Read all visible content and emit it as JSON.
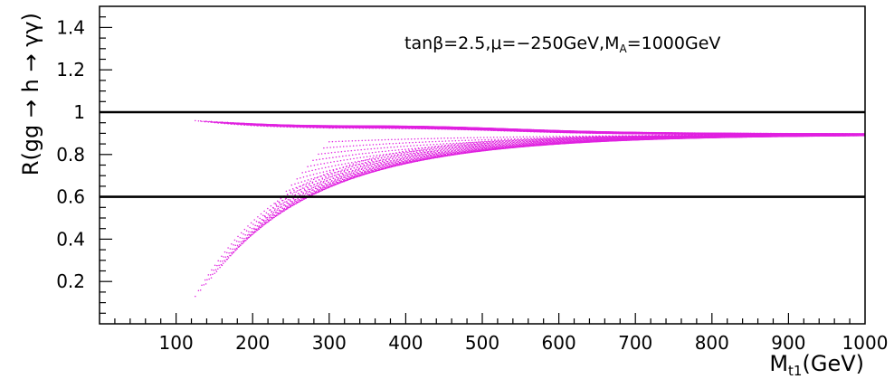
{
  "chart_data": {
    "type": "scatter",
    "title": "",
    "xlabel": "M",
    "xlabel_sub": "t1",
    "xlabel_unit": "(GeV)",
    "ylabel": "R(gg → h → γγ)",
    "xlim": [
      0,
      1000
    ],
    "ylim": [
      0,
      1.5
    ],
    "x_ticks": [
      100,
      200,
      300,
      400,
      500,
      600,
      700,
      800,
      900,
      1000
    ],
    "y_ticks": [
      0.2,
      0.4,
      0.6,
      0.8,
      1.0,
      1.2,
      1.4
    ],
    "x_tick_labels": [
      "100",
      "200",
      "300",
      "400",
      "500",
      "600",
      "700",
      "800",
      "900",
      "1000"
    ],
    "y_tick_labels": [
      "0.2",
      "0.4",
      "0.6",
      "0.8",
      "1",
      "1.2",
      "1.4"
    ],
    "grid": false,
    "annotation": "tanβ=2.5,μ=−250GeV,M_A=1000GeV",
    "annotation_parts": {
      "text1": "tanβ=2.5,μ=−250GeV,M",
      "sub": "A",
      "text2": "=1000GeV"
    },
    "reference_lines": [
      {
        "orientation": "horizontal",
        "y": 1.0,
        "color": "#000000"
      },
      {
        "orientation": "horizontal",
        "y": 0.6,
        "color": "#000000"
      }
    ],
    "series": [
      {
        "style": "dotted-curves",
        "color": "#e020e0",
        "x_start_range": [
          125,
          300
        ],
        "x_end": 1000,
        "y_asymptote": 0.895,
        "y_start_range": [
          0.13,
          0.96
        ],
        "curve_count": 26
      }
    ]
  }
}
